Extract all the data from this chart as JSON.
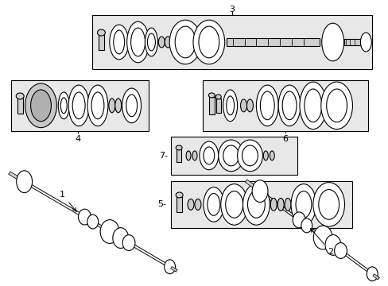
{
  "background_color": "#ffffff",
  "box_fill": "#e8e8e8",
  "line_color": "#000000",
  "fig_w": 4.89,
  "fig_h": 3.6,
  "dpi": 100
}
